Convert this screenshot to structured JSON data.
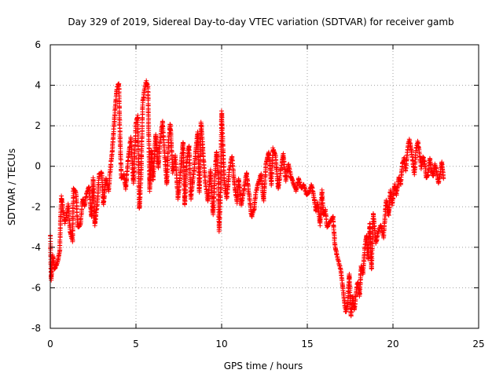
{
  "chart_data": {
    "type": "scatter",
    "title": "Day 329 of 2019, Sidereal Day-to-day VTEC variation (SDTVAR) for receiver gamb",
    "xlabel": "GPS time / hours",
    "ylabel": "SDTVAR / TECUs",
    "xlim": [
      0,
      25
    ],
    "ylim": [
      -8,
      6
    ],
    "xticks": [
      0,
      5,
      10,
      15,
      20,
      25
    ],
    "yticks": [
      -8,
      -6,
      -4,
      -2,
      0,
      2,
      4,
      6
    ],
    "grid": true,
    "marker": "+",
    "color": "#ff0000",
    "trace_points": [
      [
        0.0,
        -3.4
      ],
      [
        0.05,
        -5.6
      ],
      [
        0.15,
        -4.4
      ],
      [
        0.25,
        -5.1
      ],
      [
        0.4,
        -4.8
      ],
      [
        0.55,
        -4.2
      ],
      [
        0.6,
        -2.6
      ],
      [
        0.65,
        -1.5
      ],
      [
        0.75,
        -2.2
      ],
      [
        0.85,
        -2.8
      ],
      [
        0.95,
        -2.4
      ],
      [
        1.05,
        -1.9
      ],
      [
        1.15,
        -3.2
      ],
      [
        1.3,
        -3.7
      ],
      [
        1.35,
        -1.1
      ],
      [
        1.5,
        -1.3
      ],
      [
        1.6,
        -3.0
      ],
      [
        1.75,
        -2.9
      ],
      [
        1.9,
        -1.6
      ],
      [
        2.0,
        -2.0
      ],
      [
        2.1,
        -1.4
      ],
      [
        2.25,
        -1.0
      ],
      [
        2.4,
        -2.5
      ],
      [
        2.5,
        -0.6
      ],
      [
        2.6,
        -2.9
      ],
      [
        2.75,
        -1.8
      ],
      [
        2.85,
        -0.4
      ],
      [
        3.0,
        -0.3
      ],
      [
        3.1,
        -1.9
      ],
      [
        3.25,
        -0.6
      ],
      [
        3.4,
        -1.2
      ],
      [
        3.5,
        -0.2
      ],
      [
        3.6,
        0.6
      ],
      [
        3.7,
        1.8
      ],
      [
        3.8,
        3.0
      ],
      [
        3.9,
        3.9
      ],
      [
        4.0,
        4.1
      ],
      [
        4.05,
        2.0
      ],
      [
        4.15,
        -0.6
      ],
      [
        4.3,
        -0.4
      ],
      [
        4.4,
        -1.1
      ],
      [
        4.55,
        0.4
      ],
      [
        4.7,
        1.4
      ],
      [
        4.85,
        -0.8
      ],
      [
        5.0,
        2.1
      ],
      [
        5.1,
        2.5
      ],
      [
        5.2,
        -2.1
      ],
      [
        5.3,
        -0.4
      ],
      [
        5.4,
        3.2
      ],
      [
        5.5,
        3.8
      ],
      [
        5.6,
        4.2
      ],
      [
        5.7,
        3.9
      ],
      [
        5.8,
        -1.2
      ],
      [
        5.9,
        0.8
      ],
      [
        6.0,
        -0.7
      ],
      [
        6.15,
        1.6
      ],
      [
        6.3,
        -0.1
      ],
      [
        6.4,
        1.1
      ],
      [
        6.55,
        2.2
      ],
      [
        6.65,
        0.9
      ],
      [
        6.8,
        -0.9
      ],
      [
        6.9,
        1.3
      ],
      [
        7.0,
        2.1
      ],
      [
        7.15,
        -0.3
      ],
      [
        7.3,
        0.5
      ],
      [
        7.45,
        -1.6
      ],
      [
        7.6,
        -0.2
      ],
      [
        7.75,
        1.2
      ],
      [
        7.85,
        -1.9
      ],
      [
        7.95,
        0.2
      ],
      [
        8.1,
        1.0
      ],
      [
        8.2,
        -1.6
      ],
      [
        8.35,
        -0.5
      ],
      [
        8.5,
        0.8
      ],
      [
        8.6,
        1.7
      ],
      [
        8.7,
        -1.3
      ],
      [
        8.8,
        2.2
      ],
      [
        8.95,
        0.3
      ],
      [
        9.05,
        -0.8
      ],
      [
        9.2,
        -1.7
      ],
      [
        9.35,
        -0.2
      ],
      [
        9.5,
        -2.4
      ],
      [
        9.6,
        -0.6
      ],
      [
        9.7,
        0.7
      ],
      [
        9.8,
        -0.4
      ],
      [
        9.85,
        -3.2
      ],
      [
        9.95,
        -1.1
      ],
      [
        10.0,
        2.7
      ],
      [
        10.15,
        -0.7
      ],
      [
        10.3,
        -1.6
      ],
      [
        10.45,
        -0.2
      ],
      [
        10.6,
        0.5
      ],
      [
        10.75,
        -0.9
      ],
      [
        10.9,
        -1.8
      ],
      [
        11.0,
        -0.6
      ],
      [
        11.15,
        -1.9
      ],
      [
        11.3,
        -1.2
      ],
      [
        11.45,
        -0.3
      ],
      [
        11.6,
        -1.4
      ],
      [
        11.75,
        -2.5
      ],
      [
        11.9,
        -2.1
      ],
      [
        12.0,
        -1.3
      ],
      [
        12.15,
        -0.8
      ],
      [
        12.3,
        -0.4
      ],
      [
        12.45,
        -1.7
      ],
      [
        12.6,
        0.2
      ],
      [
        12.75,
        0.7
      ],
      [
        12.9,
        -0.9
      ],
      [
        13.0,
        0.9
      ],
      [
        13.15,
        0.5
      ],
      [
        13.3,
        -1.1
      ],
      [
        13.45,
        -0.2
      ],
      [
        13.6,
        0.6
      ],
      [
        13.75,
        -0.7
      ],
      [
        13.9,
        0.1
      ],
      [
        14.05,
        -0.5
      ],
      [
        14.2,
        -0.9
      ],
      [
        14.35,
        -1.2
      ],
      [
        14.5,
        -0.6
      ],
      [
        14.65,
        -1.1
      ],
      [
        14.8,
        -0.9
      ],
      [
        14.95,
        -1.4
      ],
      [
        15.1,
        -1.3
      ],
      [
        15.25,
        -0.9
      ],
      [
        15.4,
        -1.6
      ],
      [
        15.5,
        -2.2
      ],
      [
        15.6,
        -1.8
      ],
      [
        15.75,
        -2.9
      ],
      [
        15.85,
        -1.2
      ],
      [
        15.95,
        -2.4
      ],
      [
        16.05,
        -2.1
      ],
      [
        16.15,
        -3.0
      ],
      [
        16.5,
        -2.5
      ],
      [
        16.6,
        -3.8
      ],
      [
        16.7,
        -4.3
      ],
      [
        16.95,
        -5.1
      ],
      [
        17.05,
        -5.8
      ],
      [
        17.15,
        -6.6
      ],
      [
        17.25,
        -7.2
      ],
      [
        17.35,
        -6.9
      ],
      [
        17.45,
        -5.3
      ],
      [
        17.55,
        -7.4
      ],
      [
        17.65,
        -6.4
      ],
      [
        17.75,
        -7.1
      ],
      [
        17.85,
        -6.2
      ],
      [
        17.95,
        -5.7
      ],
      [
        18.05,
        -6.4
      ],
      [
        18.15,
        -4.9
      ],
      [
        18.25,
        -5.3
      ],
      [
        18.35,
        -4.1
      ],
      [
        18.45,
        -3.4
      ],
      [
        18.55,
        -4.6
      ],
      [
        18.65,
        -2.8
      ],
      [
        18.75,
        -5.1
      ],
      [
        18.85,
        -2.3
      ],
      [
        19.0,
        -3.8
      ],
      [
        19.15,
        -3.2
      ],
      [
        19.3,
        -2.9
      ],
      [
        19.45,
        -3.5
      ],
      [
        19.6,
        -1.7
      ],
      [
        19.75,
        -2.4
      ],
      [
        19.85,
        -1.2
      ],
      [
        19.95,
        -1.9
      ],
      [
        20.1,
        -0.9
      ],
      [
        20.2,
        -1.4
      ],
      [
        20.35,
        -0.5
      ],
      [
        20.45,
        -0.9
      ],
      [
        20.55,
        0.1
      ],
      [
        20.65,
        0.4
      ],
      [
        20.75,
        -0.2
      ],
      [
        20.85,
        0.8
      ],
      [
        20.95,
        1.3
      ],
      [
        21.05,
        0.9
      ],
      [
        21.15,
        0.3
      ],
      [
        21.25,
        -0.4
      ],
      [
        21.35,
        0.8
      ],
      [
        21.45,
        1.2
      ],
      [
        21.55,
        0.6
      ],
      [
        21.65,
        -0.1
      ],
      [
        21.75,
        0.5
      ],
      [
        21.85,
        0.2
      ],
      [
        21.95,
        -0.6
      ],
      [
        22.05,
        -0.4
      ],
      [
        22.15,
        0.4
      ],
      [
        22.25,
        -0.2
      ],
      [
        22.35,
        -0.5
      ],
      [
        22.45,
        0.1
      ],
      [
        22.55,
        -0.3
      ],
      [
        22.65,
        -0.8
      ],
      [
        22.75,
        -0.4
      ],
      [
        22.85,
        0.2
      ],
      [
        22.95,
        -0.6
      ]
    ]
  }
}
